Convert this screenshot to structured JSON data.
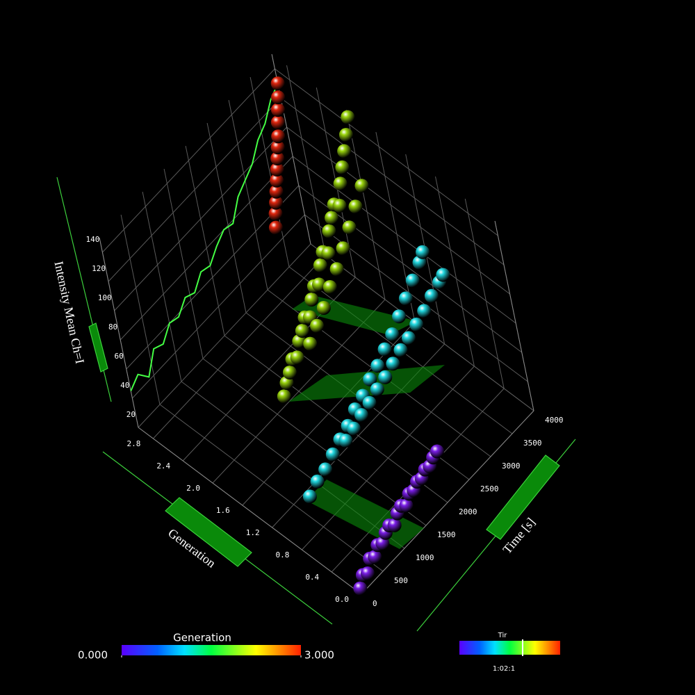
{
  "chart_data": {
    "type": "scatter3d",
    "x_label": "Generation",
    "y_label": "Time [s]",
    "z_label": "Intensity Mean Ch=I",
    "xlim": [
      0,
      3
    ],
    "xticks": [
      {
        "value": 0,
        "label": "0.0"
      },
      0.4,
      0.8,
      1.2,
      1.6,
      {
        "value": 2,
        "label": "2.0"
      },
      2.4,
      2.8
    ],
    "ylim": [
      0,
      4000
    ],
    "yticks": [
      0,
      500,
      1000,
      1500,
      2000,
      2500,
      3000,
      3500,
      4000
    ],
    "zlim": [
      20,
      150
    ],
    "zticks": [
      20,
      40,
      60,
      80,
      100,
      120,
      140
    ],
    "grid": true,
    "series": [
      {
        "generation": 0,
        "color": "#7a1ee6",
        "time": [
          0,
          100,
          200,
          300,
          400,
          500,
          600,
          700,
          800,
          900,
          1000,
          1100,
          1200,
          1300,
          1400,
          1500,
          1600,
          1700,
          1800,
          1900,
          2000
        ],
        "intensity": [
          24,
          30,
          28,
          35,
          33,
          38,
          36,
          40,
          42,
          39,
          44,
          46,
          43,
          48,
          47,
          50,
          49,
          52,
          51,
          54,
          55
        ]
      },
      {
        "generation": 1,
        "color": "#22d8e0",
        "time": [
          600,
          800,
          1000,
          1200,
          1400,
          1600,
          1800,
          2000,
          2200,
          2400,
          2600,
          2800,
          3000,
          3200,
          3400,
          3600,
          3700
        ],
        "intensity": [
          30,
          34,
          36,
          40,
          44,
          47,
          52,
          55,
          60,
          63,
          68,
          72,
          78,
          84,
          90,
          96,
          100
        ]
      },
      {
        "generation": 1,
        "color": "#22d8e0",
        "time": [
          1500,
          1700,
          1900,
          2100,
          2300,
          2500,
          2700,
          2900,
          3100,
          3300,
          3500,
          3700,
          3900,
          4000
        ],
        "intensity": [
          40,
          42,
          45,
          47,
          50,
          52,
          55,
          58,
          60,
          63,
          66,
          70,
          73,
          75
        ]
      },
      {
        "generation": 2,
        "color": "#9ad40e",
        "time": [
          1700,
          1800,
          1900,
          2000,
          2100,
          2200,
          2300,
          2400,
          2500,
          2600,
          2700,
          2800,
          2900,
          3000,
          3100,
          3200,
          3300,
          3400,
          3500,
          3600,
          3700,
          3800,
          3900,
          4000
        ],
        "intensity": [
          26,
          32,
          36,
          42,
          40,
          48,
          52,
          58,
          55,
          64,
          70,
          68,
          78,
          84,
          80,
          92,
          98,
          104,
          100,
          112,
          120,
          128,
          136,
          145
        ]
      },
      {
        "generation": 2,
        "color": "#9ad40e",
        "time": [
          2400,
          2600,
          2800,
          3000,
          3200,
          3400,
          3600,
          3800,
          4000
        ],
        "intensity": [
          40,
          46,
          52,
          60,
          66,
          74,
          82,
          90,
          98
        ]
      },
      {
        "generation": 3,
        "color": "#e0260e",
        "time": [
          3400,
          3450,
          3500,
          3550,
          3600,
          3650,
          3700,
          3750,
          3800,
          3850,
          3900,
          3950,
          4000
        ],
        "intensity": [
          50,
          58,
          64,
          70,
          76,
          82,
          88,
          94,
          100,
          108,
          115,
          122,
          130
        ]
      }
    ],
    "mean_line": {
      "color": "#44ff44",
      "time": [
        0,
        200,
        400,
        600,
        800,
        1000,
        1200,
        1400,
        1600,
        1800,
        2000,
        2200,
        2400,
        2600,
        2800,
        3000,
        3200,
        3400,
        3600,
        3800,
        4000
      ],
      "intensity": [
        45,
        50,
        42,
        55,
        52,
        60,
        58,
        65,
        62,
        70,
        68,
        75,
        80,
        78,
        90,
        95,
        100,
        110,
        115,
        125,
        130
      ]
    },
    "colorbar": {
      "title": "Generation",
      "ticks": [
        {
          "value": 0,
          "label": "0.000"
        },
        {
          "value": 3,
          "label": "3.000"
        }
      ]
    }
  },
  "time_widget": {
    "title": "Tir",
    "label": "1:02:1"
  }
}
